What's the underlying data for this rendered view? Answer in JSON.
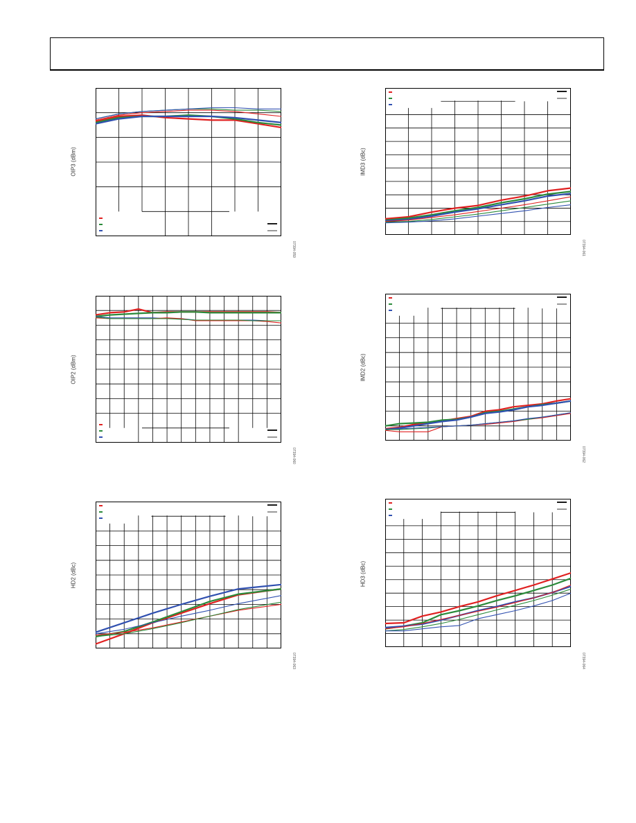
{
  "header": {},
  "colors": {
    "red": "#e02020",
    "green": "#2a8a3a",
    "blue": "#3050b0",
    "grid": "#000000",
    "legend_black": "#000000"
  },
  "chart_data": [
    {
      "id": "oip3",
      "type": "line",
      "ylabel": "OIP3 (dBm)",
      "figure_id": "07394-059",
      "ylim": [
        0,
        6
      ],
      "xlim": [
        0,
        8
      ],
      "xgrid": 8,
      "ygrid": 6,
      "grid": true,
      "legend": {
        "position": "bottom",
        "colors": [
          "red",
          "green",
          "blue"
        ]
      },
      "series": [
        {
          "color": "red",
          "thick": true,
          "x": [
            0,
            1,
            2,
            3,
            4,
            5,
            6,
            7,
            8
          ],
          "y": [
            4.65,
            4.85,
            4.9,
            4.8,
            4.75,
            4.7,
            4.7,
            4.55,
            4.4
          ]
        },
        {
          "color": "green",
          "thick": true,
          "x": [
            0,
            1,
            2,
            3,
            4,
            5,
            6,
            7,
            8
          ],
          "y": [
            4.6,
            4.8,
            4.85,
            4.85,
            4.9,
            4.85,
            4.75,
            4.6,
            4.5
          ]
        },
        {
          "color": "blue",
          "thick": true,
          "x": [
            0,
            1,
            2,
            3,
            4,
            5,
            6,
            7,
            8
          ],
          "y": [
            4.55,
            4.75,
            4.85,
            4.85,
            4.85,
            4.85,
            4.8,
            4.7,
            4.6
          ]
        },
        {
          "color": "red",
          "thick": false,
          "x": [
            0,
            1,
            2,
            3,
            4,
            5,
            6,
            7,
            8
          ],
          "y": [
            4.7,
            4.9,
            5.0,
            5.05,
            5.1,
            5.1,
            5.05,
            4.95,
            4.85
          ]
        },
        {
          "color": "green",
          "thick": false,
          "x": [
            0,
            1,
            2,
            3,
            4,
            5,
            6,
            7,
            8
          ],
          "y": [
            4.75,
            4.95,
            5.05,
            5.1,
            5.15,
            5.15,
            5.1,
            5.1,
            5.05
          ]
        },
        {
          "color": "blue",
          "thick": false,
          "x": [
            0,
            1,
            2,
            3,
            4,
            5,
            6,
            7,
            8
          ],
          "y": [
            4.75,
            4.95,
            5.05,
            5.1,
            5.15,
            5.2,
            5.2,
            5.15,
            5.15
          ]
        }
      ]
    },
    {
      "id": "imd3",
      "type": "line",
      "ylabel": "IMD3 (dBc)",
      "figure_id": "07394-061",
      "ylim": [
        0,
        11
      ],
      "xlim": [
        0,
        8
      ],
      "xgrid": 8,
      "ygrid": 11,
      "grid": true,
      "legend": {
        "position": "top",
        "colors": [
          "red",
          "green",
          "blue"
        ]
      },
      "series": [
        {
          "color": "red",
          "thick": true,
          "x": [
            0,
            1,
            2,
            3,
            4,
            5,
            6,
            7,
            8
          ],
          "y": [
            1.2,
            1.35,
            1.7,
            2.0,
            2.2,
            2.6,
            2.9,
            3.3,
            3.5
          ]
        },
        {
          "color": "green",
          "thick": true,
          "x": [
            0,
            1,
            2,
            3,
            4,
            5,
            6,
            7,
            8
          ],
          "y": [
            1.1,
            1.25,
            1.5,
            1.8,
            2.05,
            2.4,
            2.7,
            3.05,
            3.25
          ]
        },
        {
          "color": "blue",
          "thick": true,
          "x": [
            0,
            1,
            2,
            3,
            4,
            5,
            6,
            7,
            8
          ],
          "y": [
            1.05,
            1.15,
            1.4,
            1.7,
            1.95,
            2.25,
            2.55,
            2.9,
            3.1
          ]
        },
        {
          "color": "red",
          "thick": false,
          "x": [
            0,
            1,
            2,
            3,
            4,
            5,
            6,
            7,
            8
          ],
          "y": [
            1.0,
            1.1,
            1.3,
            1.5,
            1.75,
            2.0,
            2.25,
            2.55,
            2.85
          ]
        },
        {
          "color": "green",
          "thick": false,
          "x": [
            0,
            1,
            2,
            3,
            4,
            5,
            6,
            7,
            8
          ],
          "y": [
            0.95,
            1.0,
            1.15,
            1.35,
            1.55,
            1.8,
            2.05,
            2.3,
            2.55
          ]
        },
        {
          "color": "blue",
          "thick": false,
          "x": [
            0,
            1,
            2,
            3,
            4,
            5,
            6,
            7,
            8
          ],
          "y": [
            0.9,
            0.95,
            1.05,
            1.2,
            1.4,
            1.6,
            1.8,
            2.05,
            2.25
          ]
        }
      ]
    },
    {
      "id": "oip2",
      "type": "line",
      "ylabel": "OIP2 (dBm)",
      "figure_id": "07394-060",
      "ylim": [
        0,
        10
      ],
      "xlim": [
        0,
        13
      ],
      "xgrid": 13,
      "ygrid": 10,
      "grid": true,
      "legend": {
        "position": "bottom",
        "colors": [
          "red",
          "green",
          "blue"
        ]
      },
      "series": [
        {
          "color": "red",
          "thick": true,
          "x": [
            0,
            1,
            2,
            3,
            4,
            5,
            6,
            7,
            8,
            9,
            10,
            11,
            12,
            13
          ],
          "y": [
            8.7,
            8.85,
            8.9,
            9.1,
            8.85,
            8.9,
            8.9,
            8.9,
            8.9,
            8.9,
            8.9,
            8.9,
            8.9,
            8.85
          ]
        },
        {
          "color": "green",
          "thick": true,
          "x": [
            0,
            1,
            2,
            3,
            4,
            5,
            6,
            7,
            8,
            9,
            10,
            11,
            12,
            13
          ],
          "y": [
            8.6,
            8.7,
            8.75,
            8.8,
            8.85,
            8.85,
            8.9,
            8.9,
            8.85,
            8.85,
            8.85,
            8.85,
            8.85,
            8.85
          ]
        },
        {
          "color": "blue",
          "thick": false,
          "x": [
            0,
            1,
            2,
            3,
            4,
            5,
            6,
            7,
            8,
            9,
            10,
            11,
            12,
            13
          ],
          "y": [
            8.6,
            8.5,
            8.5,
            8.5,
            8.5,
            8.45,
            8.45,
            8.35,
            8.35,
            8.35,
            8.35,
            8.35,
            8.3,
            8.3
          ]
        },
        {
          "color": "red",
          "thick": false,
          "x": [
            0,
            1,
            2,
            3,
            4,
            5,
            6,
            7,
            8,
            9,
            10,
            11,
            12,
            13
          ],
          "y": [
            8.5,
            8.45,
            8.45,
            8.45,
            8.45,
            8.5,
            8.45,
            8.3,
            8.3,
            8.3,
            8.3,
            8.3,
            8.25,
            8.15
          ]
        },
        {
          "color": "green",
          "thick": false,
          "x": [
            0,
            1,
            2,
            3,
            4,
            5,
            6,
            7,
            8,
            9,
            10,
            11,
            12,
            13
          ],
          "y": [
            8.55,
            8.45,
            8.45,
            8.45,
            8.45,
            8.45,
            8.4,
            8.35,
            8.35,
            8.35,
            8.35,
            8.3,
            8.3,
            8.3
          ]
        }
      ]
    },
    {
      "id": "imd2",
      "type": "line",
      "ylabel": "IMD2 (dBc)",
      "figure_id": "07394-062",
      "ylim": [
        0,
        10
      ],
      "xlim": [
        0,
        13
      ],
      "xgrid": 13,
      "ygrid": 10,
      "grid": true,
      "legend": {
        "position": "top",
        "colors": [
          "red",
          "green",
          "blue"
        ]
      },
      "series": [
        {
          "color": "red",
          "thick": true,
          "x": [
            0,
            1,
            2,
            3,
            4,
            5,
            6,
            7,
            8,
            9,
            10,
            11,
            12,
            13
          ],
          "y": [
            0.8,
            0.9,
            1.1,
            1.2,
            1.35,
            1.5,
            1.65,
            2.0,
            2.1,
            2.3,
            2.4,
            2.5,
            2.7,
            2.85
          ]
        },
        {
          "color": "green",
          "thick": true,
          "x": [
            0,
            1,
            2,
            3,
            4,
            5,
            6,
            7,
            8,
            9,
            10,
            11,
            12,
            13
          ],
          "y": [
            1.0,
            1.15,
            1.2,
            1.25,
            1.4,
            1.45,
            1.6,
            1.9,
            2.0,
            2.15,
            2.3,
            2.45,
            2.55,
            2.7
          ]
        },
        {
          "color": "blue",
          "thick": true,
          "x": [
            0,
            1,
            2,
            3,
            4,
            5,
            6,
            7,
            8,
            9,
            10,
            11,
            12,
            13
          ],
          "y": [
            0.75,
            0.85,
            1.0,
            1.15,
            1.3,
            1.4,
            1.6,
            1.85,
            1.95,
            2.1,
            2.3,
            2.4,
            2.55,
            2.7
          ]
        },
        {
          "color": "red",
          "thick": false,
          "x": [
            0,
            1,
            2,
            3,
            4,
            5,
            6,
            7,
            8,
            9,
            10,
            11,
            12,
            13
          ],
          "y": [
            0.7,
            0.6,
            0.6,
            0.6,
            0.95,
            1.0,
            1.05,
            1.1,
            1.2,
            1.3,
            1.45,
            1.55,
            1.7,
            1.85
          ]
        },
        {
          "color": "green",
          "thick": false,
          "x": [
            0,
            1,
            2,
            3,
            4,
            5,
            6,
            7,
            8,
            9,
            10,
            11,
            12,
            13
          ],
          "y": [
            0.75,
            0.75,
            0.8,
            0.85,
            0.95,
            1.0,
            1.05,
            1.15,
            1.25,
            1.35,
            1.45,
            1.6,
            1.75,
            1.9
          ]
        },
        {
          "color": "blue",
          "thick": false,
          "x": [
            0,
            1,
            2,
            3,
            4,
            5,
            6,
            7,
            8,
            9,
            10,
            11,
            12,
            13
          ],
          "y": [
            0.8,
            0.8,
            0.85,
            0.9,
            0.95,
            1.0,
            1.05,
            1.15,
            1.25,
            1.35,
            1.5,
            1.6,
            1.75,
            1.9
          ]
        }
      ]
    },
    {
      "id": "hd2",
      "type": "line",
      "ylabel": "HD2 (dBc)",
      "figure_id": "07394-063",
      "ylim": [
        0,
        10
      ],
      "xlim": [
        0,
        13
      ],
      "xgrid": 13,
      "ygrid": 10,
      "grid": true,
      "legend": {
        "position": "top",
        "colors": [
          "red",
          "green",
          "blue"
        ]
      },
      "series": [
        {
          "color": "red",
          "thick": true,
          "x": [
            0,
            2,
            4,
            6,
            8,
            10,
            13
          ],
          "y": [
            0.3,
            1.0,
            1.75,
            2.4,
            3.05,
            3.65,
            4.05
          ]
        },
        {
          "color": "green",
          "thick": true,
          "x": [
            0,
            2,
            4,
            6,
            8,
            10,
            13
          ],
          "y": [
            0.8,
            1.15,
            1.8,
            2.5,
            3.2,
            3.7,
            4.05
          ]
        },
        {
          "color": "blue",
          "thick": true,
          "x": [
            0,
            2,
            4,
            6,
            8,
            10,
            13
          ],
          "y": [
            1.1,
            1.75,
            2.4,
            3.0,
            3.55,
            4.05,
            4.35
          ]
        },
        {
          "color": "red",
          "thick": false,
          "x": [
            0,
            2,
            4,
            6,
            8,
            10,
            13
          ],
          "y": [
            0.9,
            1.1,
            1.4,
            1.8,
            2.2,
            2.6,
            3.0
          ]
        },
        {
          "color": "green",
          "thick": false,
          "x": [
            0,
            2,
            4,
            6,
            8,
            10,
            13
          ],
          "y": [
            0.8,
            1.0,
            1.35,
            1.75,
            2.2,
            2.65,
            3.15
          ]
        },
        {
          "color": "blue",
          "thick": false,
          "x": [
            0,
            2,
            4,
            6,
            8,
            10,
            13
          ],
          "y": [
            1.0,
            1.3,
            1.75,
            2.2,
            2.6,
            3.05,
            3.6
          ]
        }
      ]
    },
    {
      "id": "hd3",
      "type": "line",
      "ylabel": "HD3 (dBc)",
      "figure_id": "07394-064",
      "ylim": [
        0,
        11
      ],
      "xlim": [
        0,
        10
      ],
      "xgrid": 10,
      "ygrid": 11,
      "grid": true,
      "legend": {
        "position": "top",
        "colors": [
          "red",
          "green",
          "blue"
        ]
      },
      "series": [
        {
          "color": "red",
          "thick": true,
          "x": [
            0,
            1,
            2,
            3,
            4,
            5,
            6,
            7,
            8,
            9,
            10
          ],
          "y": [
            1.75,
            1.8,
            2.3,
            2.6,
            3.0,
            3.35,
            3.8,
            4.2,
            4.6,
            5.05,
            5.5
          ]
        },
        {
          "color": "green",
          "thick": true,
          "x": [
            0,
            1,
            2,
            3,
            4,
            5,
            6,
            7,
            8,
            9,
            10
          ],
          "y": [
            1.35,
            1.55,
            1.8,
            2.4,
            2.7,
            3.05,
            3.45,
            3.8,
            4.2,
            4.6,
            5.1
          ]
        },
        {
          "color": "blue",
          "thick": true,
          "x": [
            0,
            1,
            2,
            3,
            4,
            5,
            6,
            7,
            8,
            9,
            10
          ],
          "y": [
            1.45,
            1.55,
            1.7,
            2.0,
            2.35,
            2.7,
            3.0,
            3.35,
            3.65,
            4.05,
            4.5
          ]
        },
        {
          "color": "red",
          "thick": false,
          "x": [
            0,
            1,
            2,
            3,
            4,
            5,
            6,
            7,
            8,
            9,
            10
          ],
          "y": [
            1.35,
            1.5,
            1.75,
            2.05,
            2.35,
            2.65,
            2.95,
            3.3,
            3.65,
            4.05,
            4.6
          ]
        },
        {
          "color": "green",
          "thick": false,
          "x": [
            0,
            1,
            2,
            3,
            4,
            5,
            6,
            7,
            8,
            9,
            10
          ],
          "y": [
            1.2,
            1.3,
            1.5,
            1.75,
            2.05,
            2.4,
            2.75,
            3.1,
            3.45,
            3.85,
            4.3
          ]
        },
        {
          "color": "blue",
          "thick": false,
          "x": [
            0,
            1,
            2,
            3,
            4,
            5,
            6,
            7,
            8,
            9,
            10
          ],
          "y": [
            1.2,
            1.2,
            1.35,
            1.5,
            1.6,
            2.1,
            2.4,
            2.7,
            3.05,
            3.45,
            4.0
          ]
        }
      ]
    }
  ]
}
